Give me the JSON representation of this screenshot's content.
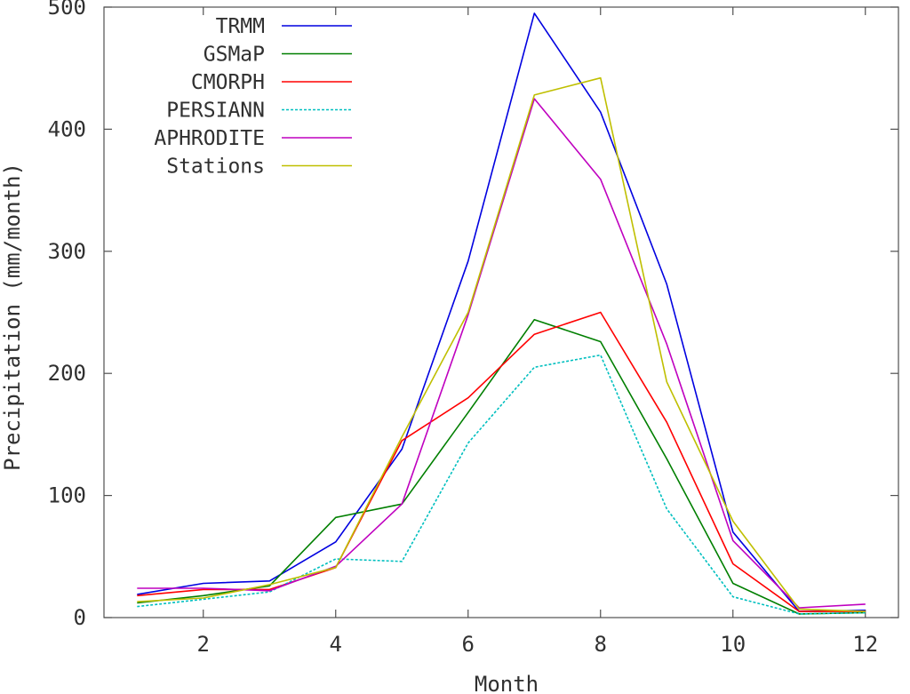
{
  "chart_data": {
    "type": "line",
    "title": "",
    "xlabel": "Month",
    "ylabel": "Precipitation (mm/month)",
    "xlim": [
      0.5,
      12.5
    ],
    "ylim": [
      0,
      500
    ],
    "xticks": [
      2,
      4,
      6,
      8,
      10,
      12
    ],
    "xtick_labels": [
      "2",
      "4",
      "6",
      "8",
      "10",
      "12"
    ],
    "yticks": [
      0,
      100,
      200,
      300,
      400,
      500
    ],
    "ytick_labels": [
      "0",
      "100",
      "200",
      "300",
      "400",
      "500"
    ],
    "grid": false,
    "legend_position": "top-left",
    "x": [
      1,
      2,
      3,
      4,
      5,
      6,
      7,
      8,
      9,
      10,
      11,
      12
    ],
    "series": [
      {
        "name": "TRMM",
        "color": "#0000e0",
        "dashed": false,
        "values": [
          19,
          28,
          30,
          62,
          138,
          292,
          495,
          414,
          273,
          70,
          5,
          6
        ]
      },
      {
        "name": "GSMaP",
        "color": "#007f00",
        "dashed": false,
        "values": [
          12,
          18,
          26,
          82,
          93,
          168,
          244,
          226,
          130,
          28,
          3,
          4
        ]
      },
      {
        "name": "CMORPH",
        "color": "#ff0000",
        "dashed": false,
        "values": [
          18,
          23,
          23,
          41,
          145,
          180,
          232,
          250,
          160,
          44,
          5,
          5
        ]
      },
      {
        "name": "PERSIANN",
        "color": "#00bfbf",
        "dashed": true,
        "values": [
          9,
          15,
          21,
          48,
          46,
          143,
          205,
          215,
          89,
          17,
          3,
          4
        ]
      },
      {
        "name": "APHRODITE",
        "color": "#bf00bf",
        "dashed": false,
        "values": [
          24,
          24,
          22,
          42,
          93,
          248,
          425,
          359,
          224,
          63,
          8,
          11
        ]
      },
      {
        "name": "Stations",
        "color": "#bfbf00",
        "dashed": false,
        "values": [
          13,
          16,
          27,
          41,
          148,
          250,
          428,
          442,
          193,
          79,
          7,
          5
        ]
      }
    ]
  }
}
